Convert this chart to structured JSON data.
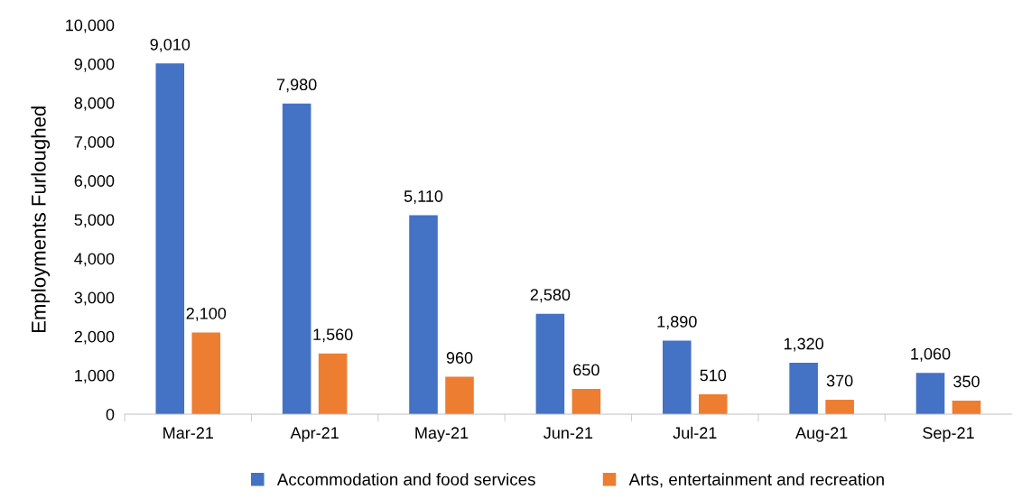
{
  "chart_data": {
    "type": "bar",
    "ylabel": "Employments Furloughed",
    "categories": [
      "Mar-21",
      "Apr-21",
      "May-21",
      "Jun-21",
      "Jul-21",
      "Aug-21",
      "Sep-21"
    ],
    "series": [
      {
        "name": "Accommodation and food services",
        "color": "#4472c4",
        "values": [
          9010,
          7980,
          5110,
          2580,
          1890,
          1320,
          1060
        ],
        "value_labels": [
          "9,010",
          "7,980",
          "5,110",
          "2,580",
          "1,890",
          "1,320",
          "1,060"
        ]
      },
      {
        "name": "Arts, entertainment and recreation",
        "color": "#ed7d31",
        "values": [
          2100,
          1560,
          960,
          650,
          510,
          370,
          350
        ],
        "value_labels": [
          "2,100",
          "1,560",
          "960",
          "650",
          "510",
          "370",
          "350"
        ]
      }
    ],
    "ylim": [
      0,
      10000
    ],
    "yticks": [
      {
        "value": 0,
        "label": "0"
      },
      {
        "value": 1000,
        "label": "1,000"
      },
      {
        "value": 2000,
        "label": "2,000"
      },
      {
        "value": 3000,
        "label": "3,000"
      },
      {
        "value": 4000,
        "label": "4,000"
      },
      {
        "value": 5000,
        "label": "5,000"
      },
      {
        "value": 6000,
        "label": "6,000"
      },
      {
        "value": 7000,
        "label": "7,000"
      },
      {
        "value": 8000,
        "label": "8,000"
      },
      {
        "value": 9000,
        "label": "9,000"
      },
      {
        "value": 10000,
        "label": "10,000"
      }
    ],
    "grid": false,
    "legend": "bottom"
  }
}
